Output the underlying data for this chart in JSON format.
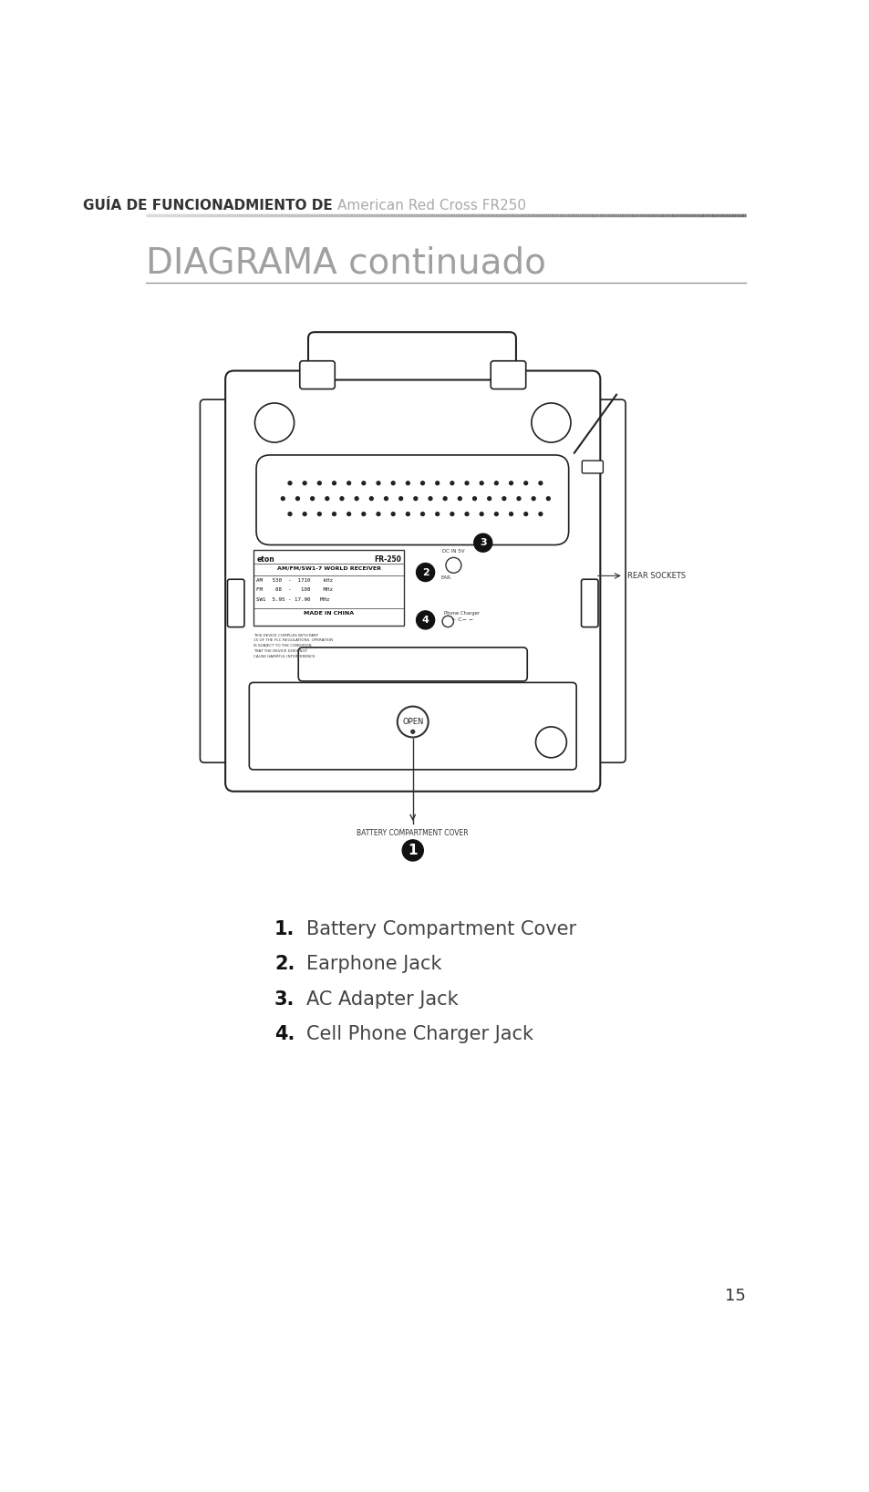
{
  "bg_color": "#ffffff",
  "header_bold_text": "GUÍA DE FUNCIONADMIENTO DE",
  "header_light_text": "American Red Cross FR250",
  "section_title": "DIAGRAMA continuado",
  "section_title_color": "#a0a0a0",
  "section_line_color": "#999999",
  "items": [
    {
      "num": "1.",
      "text": "Battery Compartment Cover"
    },
    {
      "num": "2.",
      "text": "Earphone Jack"
    },
    {
      "num": "3.",
      "text": "AC Adapter Jack"
    },
    {
      "num": "4.",
      "text": "Cell Phone Charger Jack"
    }
  ],
  "label_rear_sockets": "REAR SOCKETS",
  "label_battery_cover": "BATTERY COMPARTMENT COVER",
  "page_number": "15"
}
